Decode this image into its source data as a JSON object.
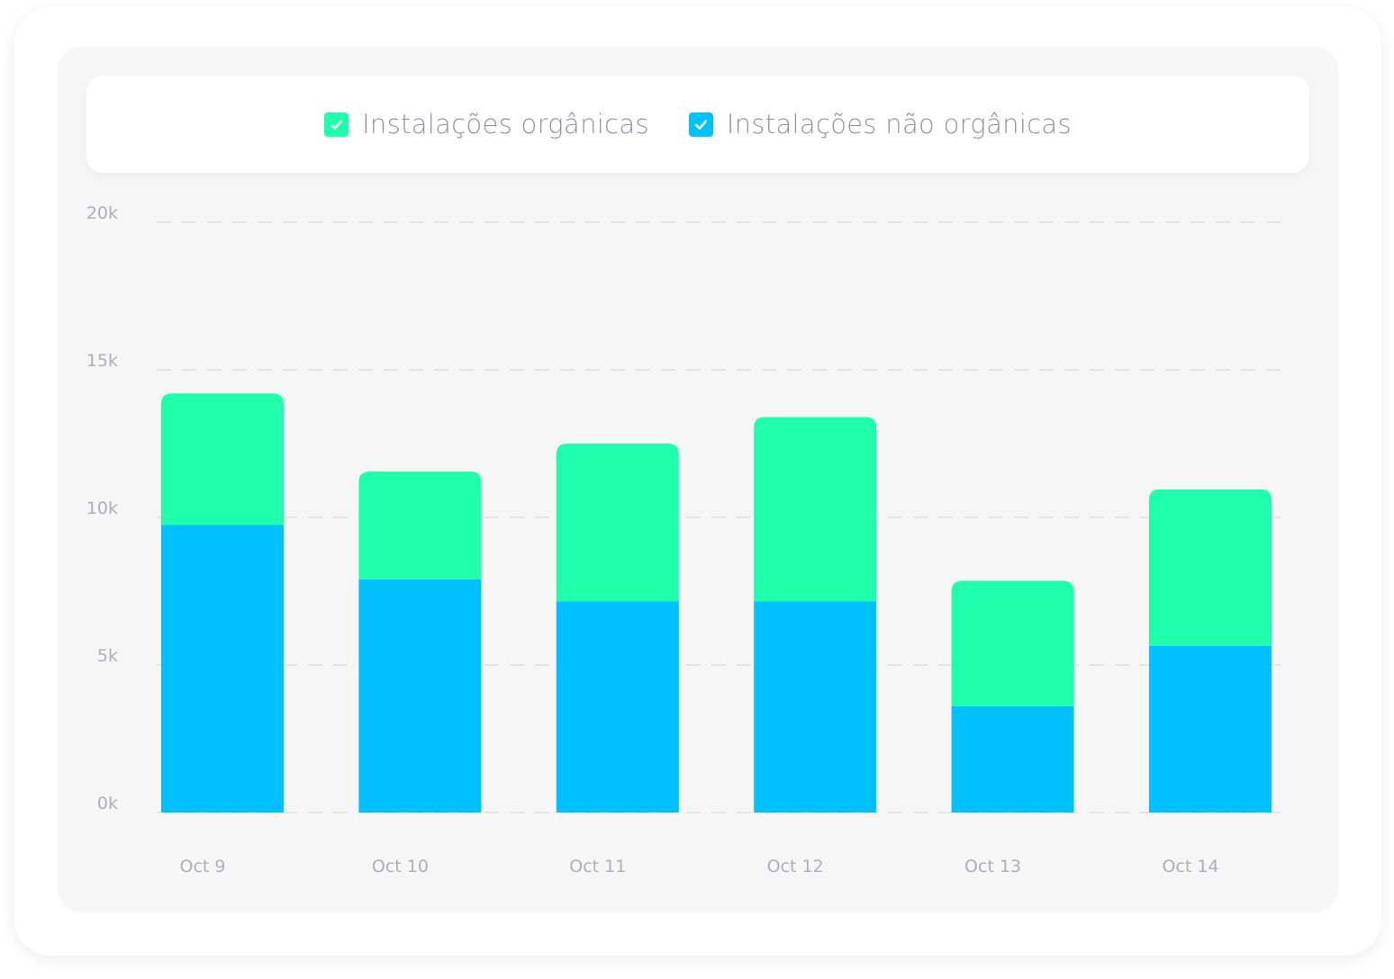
{
  "legend": {
    "items": [
      {
        "label": "Instalações orgânicas",
        "color": "#1ffeaa",
        "checked": true,
        "icon": "checkmark-icon"
      },
      {
        "label": "Instalações não orgânicas",
        "color": "#00c1ff",
        "checked": true,
        "icon": "checkmark-icon"
      }
    ]
  },
  "chart_data": {
    "type": "bar",
    "stacked": true,
    "categories": [
      "Oct 9",
      "Oct 10",
      "Oct 11",
      "Oct 12",
      "Oct 13",
      "Oct 14"
    ],
    "series": [
      {
        "name": "Instalações não orgânicas",
        "color": "#00c1ff",
        "values": [
          9750,
          7900,
          7150,
          7150,
          3600,
          5650
        ]
      },
      {
        "name": "Instalações orgânicas",
        "color": "#1ffeaa",
        "values": [
          4450,
          3650,
          5350,
          6250,
          4250,
          5300
        ]
      }
    ],
    "yticks": [
      0,
      5000,
      10000,
      15000,
      20000
    ],
    "ytick_labels": [
      "0k",
      "5k",
      "10k",
      "15k",
      "20k"
    ],
    "ylim": [
      0,
      20000
    ],
    "grid": true,
    "grid_style": "dashed",
    "legend_position": "top-center"
  }
}
